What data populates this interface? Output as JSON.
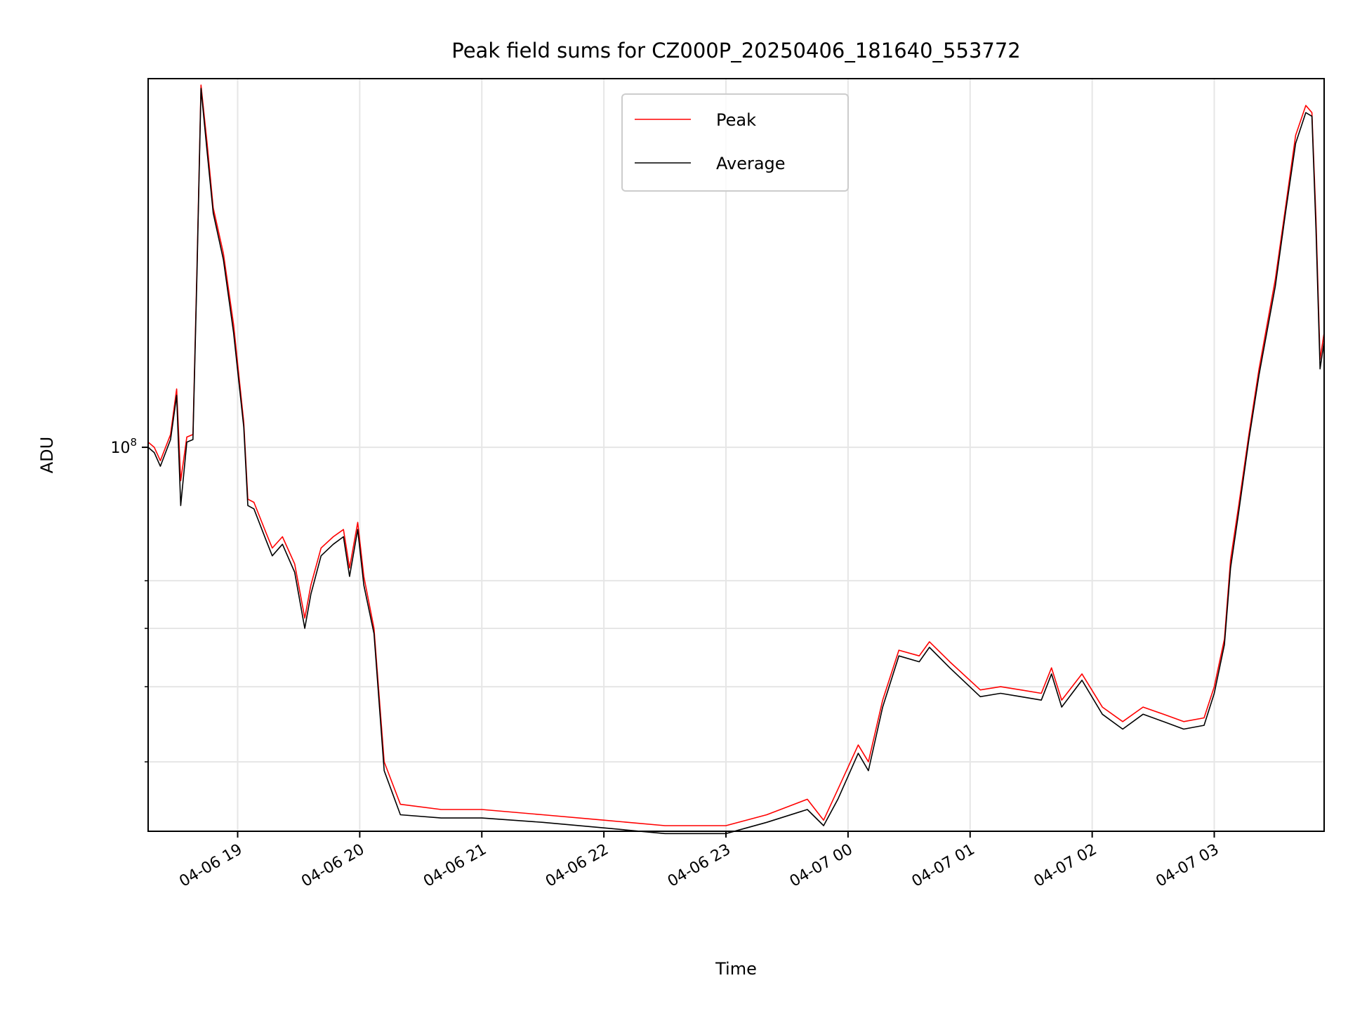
{
  "chart_data": {
    "type": "line",
    "title": "Peak field sums for CZ000P_20250406_181640_553772",
    "xlabel": "Time",
    "ylabel": "ADU",
    "yscale": "log",
    "xlim": [
      "2025-04-06 18:16",
      "2025-04-07 03:54"
    ],
    "ylim": [
      23000000.0,
      410000000.0
    ],
    "grid": true,
    "legend_position": "upper center",
    "x_ticks": [
      "04-06 19",
      "04-06 20",
      "04-06 21",
      "04-06 22",
      "04-06 23",
      "04-07 00",
      "04-07 01",
      "04-07 02",
      "04-07 03"
    ],
    "y_tick_labels": [
      {
        "value": 100000000.0,
        "label": "10^8"
      }
    ],
    "y_minor_ticks": [
      30000000.0,
      40000000.0,
      50000000.0,
      60000000.0
    ],
    "colors": {
      "Peak": "#ff0000",
      "Average": "#000000"
    },
    "series": [
      {
        "name": "Peak",
        "x": [
          "2025-04-06 18:16",
          "2025-04-06 18:19",
          "2025-04-06 18:22",
          "2025-04-06 18:27",
          "2025-04-06 18:30",
          "2025-04-06 18:32",
          "2025-04-06 18:35",
          "2025-04-06 18:38",
          "2025-04-06 18:40",
          "2025-04-06 18:42",
          "2025-04-06 18:45",
          "2025-04-06 18:48",
          "2025-04-06 18:53",
          "2025-04-06 18:58",
          "2025-04-06 19:03",
          "2025-04-06 19:05",
          "2025-04-06 19:08",
          "2025-04-06 19:14",
          "2025-04-06 19:17",
          "2025-04-06 19:22",
          "2025-04-06 19:28",
          "2025-04-06 19:33",
          "2025-04-06 19:36",
          "2025-04-06 19:41",
          "2025-04-06 19:47",
          "2025-04-06 19:52",
          "2025-04-06 19:55",
          "2025-04-06 19:59",
          "2025-04-06 20:02",
          "2025-04-06 20:07",
          "2025-04-06 20:12",
          "2025-04-06 20:20",
          "2025-04-06 20:40",
          "2025-04-06 21:00",
          "2025-04-06 21:30",
          "2025-04-06 22:00",
          "2025-04-06 22:30",
          "2025-04-06 23:00",
          "2025-04-06 23:20",
          "2025-04-06 23:40",
          "2025-04-06 23:48",
          "2025-04-06 23:55",
          "2025-04-07 00:05",
          "2025-04-07 00:10",
          "2025-04-07 00:17",
          "2025-04-07 00:25",
          "2025-04-07 00:35",
          "2025-04-07 00:40",
          "2025-04-07 00:50",
          "2025-04-07 01:05",
          "2025-04-07 01:15",
          "2025-04-07 01:25",
          "2025-04-07 01:35",
          "2025-04-07 01:40",
          "2025-04-07 01:45",
          "2025-04-07 01:55",
          "2025-04-07 02:05",
          "2025-04-07 02:15",
          "2025-04-07 02:25",
          "2025-04-07 02:35",
          "2025-04-07 02:45",
          "2025-04-07 02:55",
          "2025-04-07 03:00",
          "2025-04-07 03:05",
          "2025-04-07 03:08",
          "2025-04-07 03:12",
          "2025-04-07 03:17",
          "2025-04-07 03:22",
          "2025-04-07 03:30",
          "2025-04-07 03:35",
          "2025-04-07 03:40",
          "2025-04-07 03:45",
          "2025-04-07 03:48",
          "2025-04-07 03:50",
          "2025-04-07 03:52",
          "2025-04-07 03:54"
        ],
        "y": [
          102000000.0,
          100000000.0,
          95000000.0,
          105000000.0,
          125000000.0,
          88000000.0,
          104000000.0,
          105000000.0,
          200000000.0,
          400000000.0,
          320000000.0,
          250000000.0,
          210000000.0,
          160000000.0,
          110000000.0,
          82000000.0,
          81000000.0,
          72000000.0,
          68000000.0,
          71000000.0,
          64000000.0,
          52000000.0,
          59000000.0,
          68000000.0,
          71000000.0,
          73000000.0,
          63000000.0,
          75000000.0,
          61000000.0,
          50000000.0,
          30000000.0,
          25500000.0,
          25000000.0,
          25000000.0,
          24500000.0,
          24000000.0,
          23500000.0,
          23500000.0,
          24500000.0,
          26000000.0,
          24000000.0,
          27000000.0,
          32000000.0,
          30000000.0,
          38000000.0,
          46000000.0,
          45000000.0,
          47500000.0,
          44000000.0,
          39500000.0,
          40000000.0,
          39500000.0,
          39000000.0,
          43000000.0,
          38000000.0,
          42000000.0,
          37000000.0,
          35000000.0,
          37000000.0,
          36000000.0,
          35000000.0,
          35500000.0,
          40000000.0,
          48000000.0,
          65000000.0,
          80000000.0,
          105000000.0,
          135000000.0,
          190000000.0,
          250000000.0,
          330000000.0,
          370000000.0,
          360000000.0,
          240000000.0,
          140000000.0,
          155000000.0
        ]
      },
      {
        "name": "Average",
        "x": [
          "2025-04-06 18:16",
          "2025-04-06 18:19",
          "2025-04-06 18:22",
          "2025-04-06 18:27",
          "2025-04-06 18:30",
          "2025-04-06 18:32",
          "2025-04-06 18:35",
          "2025-04-06 18:38",
          "2025-04-06 18:40",
          "2025-04-06 18:42",
          "2025-04-06 18:45",
          "2025-04-06 18:48",
          "2025-04-06 18:53",
          "2025-04-06 18:58",
          "2025-04-06 19:03",
          "2025-04-06 19:05",
          "2025-04-06 19:08",
          "2025-04-06 19:14",
          "2025-04-06 19:17",
          "2025-04-06 19:22",
          "2025-04-06 19:28",
          "2025-04-06 19:33",
          "2025-04-06 19:36",
          "2025-04-06 19:41",
          "2025-04-06 19:47",
          "2025-04-06 19:52",
          "2025-04-06 19:55",
          "2025-04-06 19:59",
          "2025-04-06 20:02",
          "2025-04-06 20:07",
          "2025-04-06 20:12",
          "2025-04-06 20:20",
          "2025-04-06 20:40",
          "2025-04-06 21:00",
          "2025-04-06 21:30",
          "2025-04-06 22:00",
          "2025-04-06 22:30",
          "2025-04-06 23:00",
          "2025-04-06 23:20",
          "2025-04-06 23:40",
          "2025-04-06 23:48",
          "2025-04-06 23:55",
          "2025-04-07 00:05",
          "2025-04-07 00:10",
          "2025-04-07 00:17",
          "2025-04-07 00:25",
          "2025-04-07 00:35",
          "2025-04-07 00:40",
          "2025-04-07 00:50",
          "2025-04-07 01:05",
          "2025-04-07 01:15",
          "2025-04-07 01:25",
          "2025-04-07 01:35",
          "2025-04-07 01:40",
          "2025-04-07 01:45",
          "2025-04-07 01:55",
          "2025-04-07 02:05",
          "2025-04-07 02:15",
          "2025-04-07 02:25",
          "2025-04-07 02:35",
          "2025-04-07 02:45",
          "2025-04-07 02:55",
          "2025-04-07 03:00",
          "2025-04-07 03:05",
          "2025-04-07 03:08",
          "2025-04-07 03:12",
          "2025-04-07 03:17",
          "2025-04-07 03:22",
          "2025-04-07 03:30",
          "2025-04-07 03:35",
          "2025-04-07 03:40",
          "2025-04-07 03:45",
          "2025-04-07 03:48",
          "2025-04-07 03:50",
          "2025-04-07 03:52",
          "2025-04-07 03:54"
        ],
        "y": [
          100000000.0,
          98000000.0,
          93000000.0,
          103000000.0,
          122000000.0,
          80000000.0,
          102000000.0,
          103000000.0,
          195000000.0,
          395000000.0,
          310000000.0,
          245000000.0,
          205000000.0,
          155000000.0,
          108000000.0,
          80000000.0,
          79000000.0,
          70000000.0,
          66000000.0,
          69000000.0,
          62000000.0,
          50000000.0,
          57000000.0,
          66000000.0,
          69000000.0,
          71000000.0,
          61000000.0,
          73000000.0,
          59000000.0,
          49000000.0,
          29000000.0,
          24500000.0,
          24200000.0,
          24200000.0,
          23800000.0,
          23300000.0,
          22800000.0,
          22800000.0,
          23800000.0,
          25000000.0,
          23500000.0,
          26000000.0,
          31000000.0,
          29000000.0,
          37000000.0,
          45000000.0,
          44000000.0,
          46500000.0,
          43000000.0,
          38500000.0,
          39000000.0,
          38500000.0,
          38000000.0,
          42000000.0,
          37000000.0,
          41000000.0,
          36000000.0,
          34000000.0,
          36000000.0,
          35000000.0,
          34000000.0,
          34500000.0,
          39000000.0,
          47000000.0,
          63000000.0,
          78000000.0,
          103000000.0,
          132000000.0,
          185000000.0,
          245000000.0,
          320000000.0,
          360000000.0,
          355000000.0,
          230000000.0,
          135000000.0,
          150000000.0
        ]
      }
    ]
  }
}
